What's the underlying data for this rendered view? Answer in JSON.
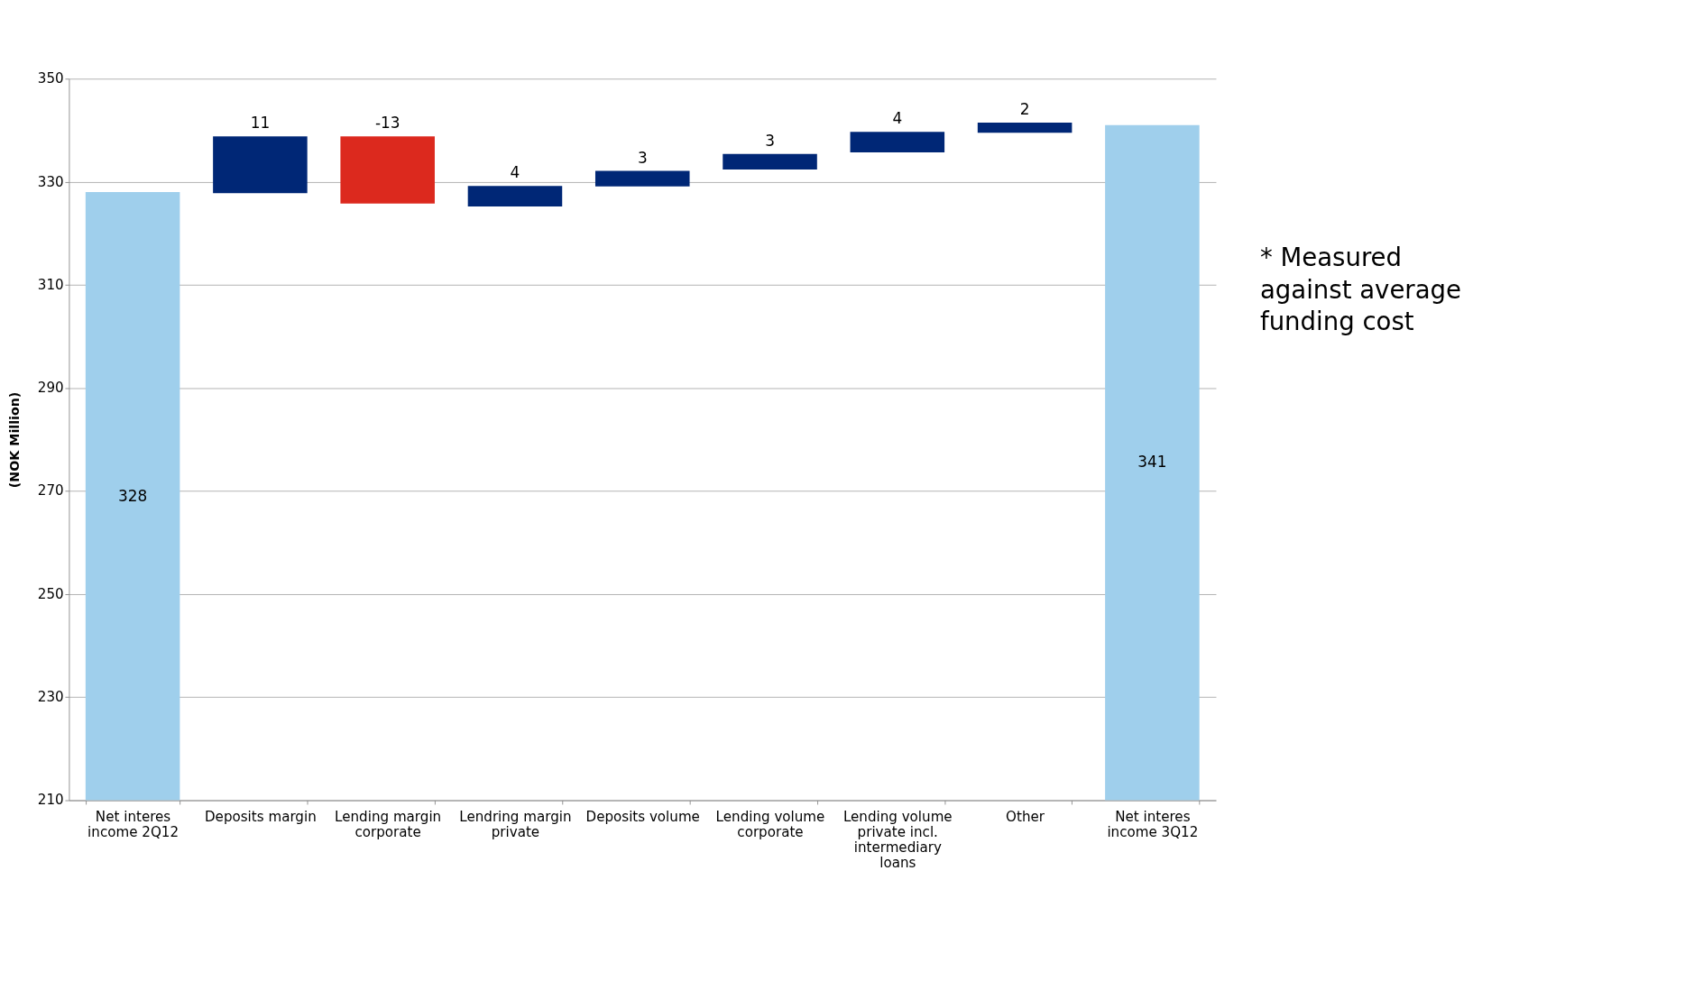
{
  "chart_data": {
    "type": "bar",
    "ylabel": "(NOK Million)",
    "categories": [
      "Net interes income 2Q12",
      "Deposits margin",
      "Lending margin corporate",
      "Lendring margin private",
      "Deposits volume",
      "Lending volume corporate",
      "Lending volume private incl. intermediary loans",
      "Other",
      "Net interes income 3Q12"
    ],
    "values": [
      328,
      11,
      -13,
      4,
      3,
      3,
      4,
      2,
      341
    ],
    "base": [
      null,
      327.8,
      338.8,
      325.2,
      329.1,
      332.4,
      335.7,
      339.5,
      null
    ],
    "colors": [
      "#9fcfec",
      "#002776",
      "#dc291e",
      "#002776",
      "#002776",
      "#002776",
      "#002776",
      "#002776",
      "#9fcfec"
    ],
    "data_labels": true,
    "ylim": [
      210,
      350
    ],
    "yticks": [
      210,
      230,
      250,
      270,
      290,
      310,
      330,
      350
    ],
    "grid": "y",
    "annotations": [
      "* Measured against average funding cost"
    ]
  }
}
